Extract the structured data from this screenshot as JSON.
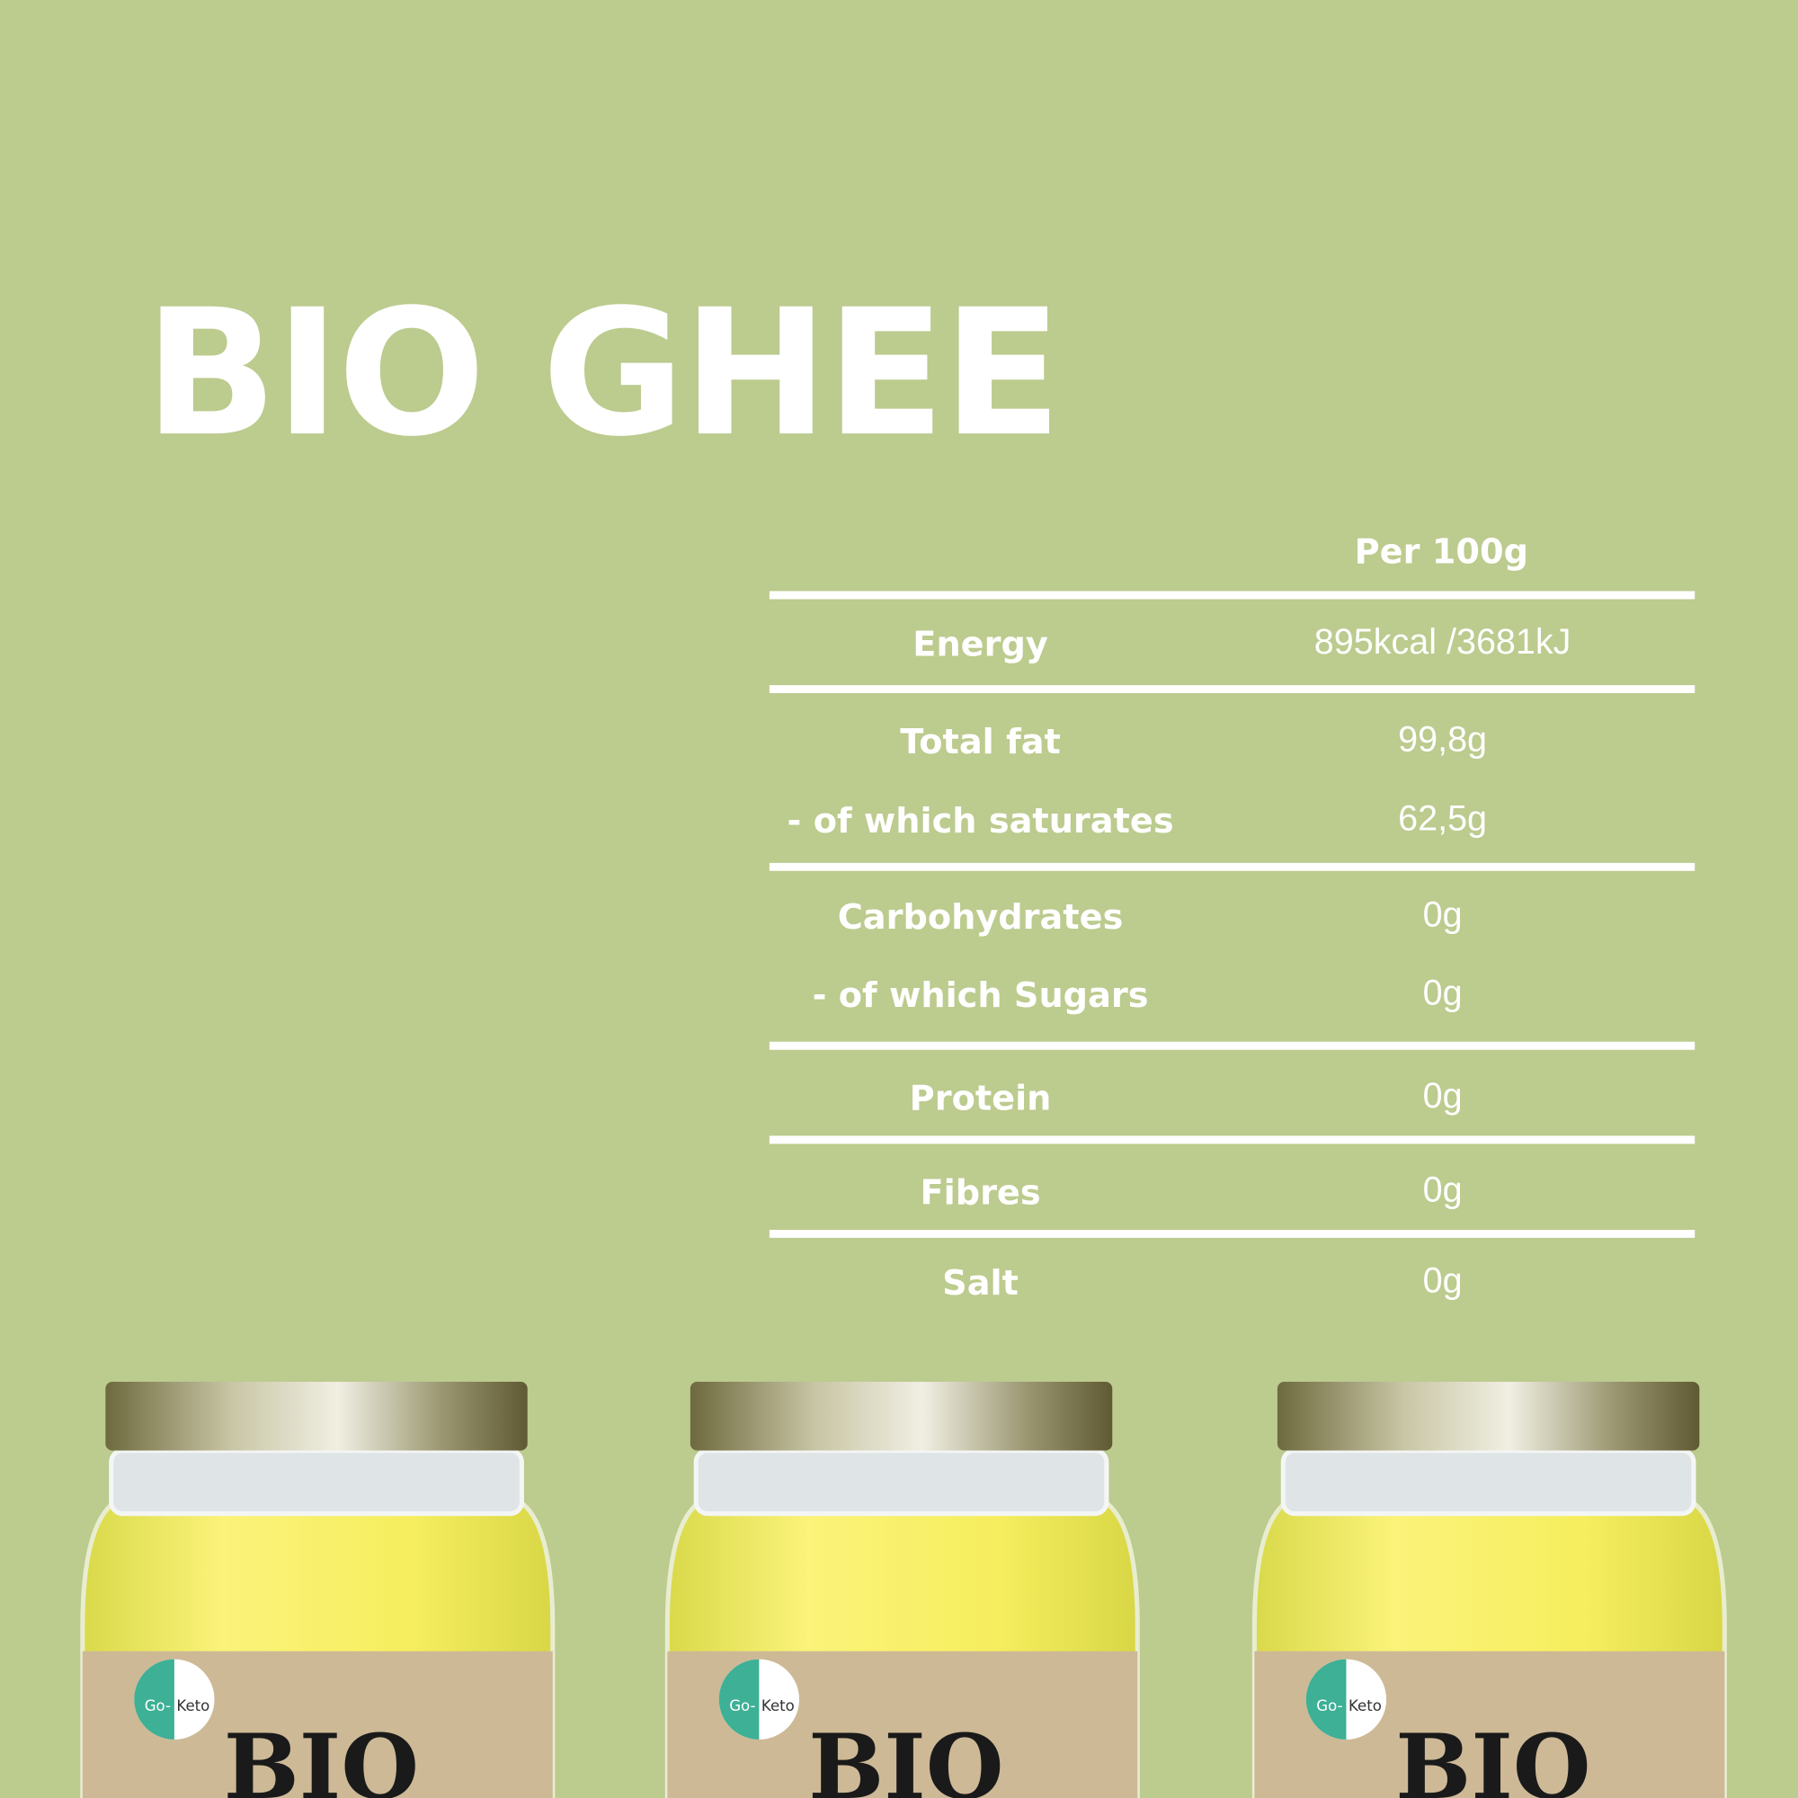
{
  "title": "BIO GHEE",
  "table": {
    "header": "Per 100g",
    "rows": [
      [
        "Energy",
        "895kcal /3681kJ"
      ],
      [
        "Total fat",
        "99,8g"
      ],
      [
        "- of which saturates",
        "62,5g"
      ],
      [
        "Carbohydrates",
        "0g"
      ],
      [
        "- of which Sugars",
        "0g"
      ],
      [
        "Protein",
        "0g"
      ],
      [
        "Fibres",
        "0g"
      ],
      [
        "Salt",
        "0g"
      ]
    ]
  },
  "jars": [
    {
      "brand_prefix": "Go-",
      "brand": "Keto",
      "product": "BIO"
    },
    {
      "brand_prefix": "Go-",
      "brand": "Keto",
      "product": "BIO"
    },
    {
      "brand_prefix": "Go-",
      "brand": "Keto",
      "product": "BIO"
    }
  ]
}
